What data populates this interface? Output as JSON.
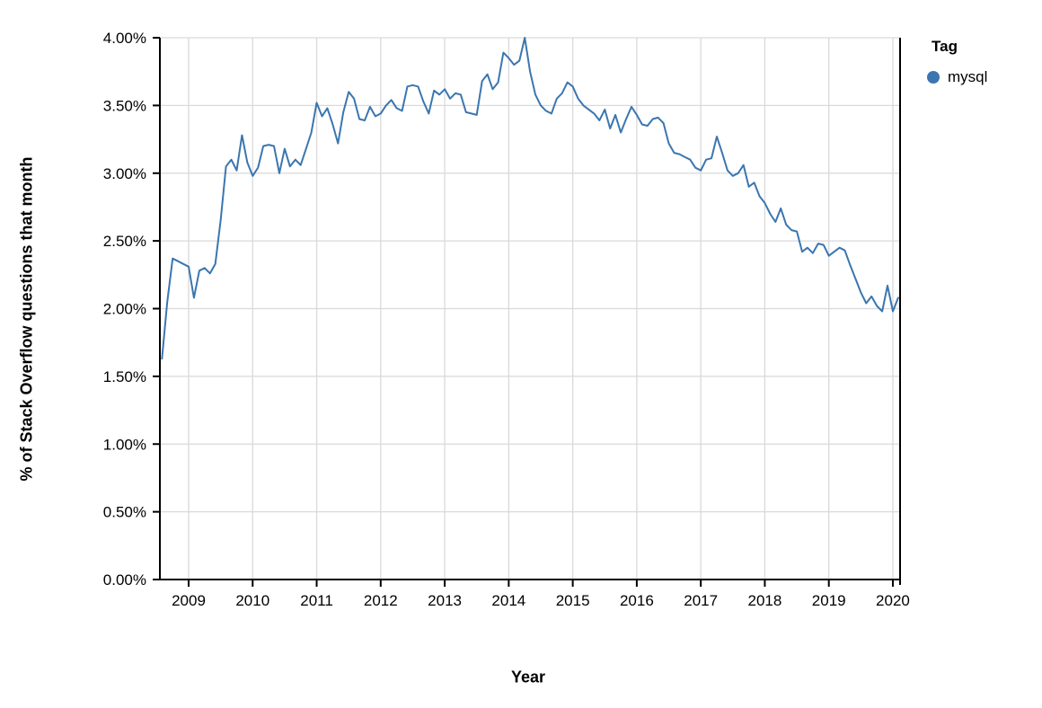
{
  "chart_data": {
    "type": "line",
    "title": "",
    "xlabel": "Year",
    "ylabel": "% of Stack Overflow questions that month",
    "ylim": [
      0,
      4
    ],
    "y_tick_values": [
      0,
      0.5,
      1.0,
      1.5,
      2.0,
      2.5,
      3.0,
      3.5,
      4.0
    ],
    "y_tick_labels": [
      "0.00%",
      "0.50%",
      "1.00%",
      "1.50%",
      "2.00%",
      "2.50%",
      "3.00%",
      "3.50%",
      "4.00%"
    ],
    "x_ticks": [
      2009,
      2010,
      2011,
      2012,
      2013,
      2014,
      2015,
      2016,
      2017,
      2018,
      2019,
      2020
    ],
    "grid": true,
    "legend": {
      "title": "Tag",
      "position": "top-right"
    },
    "colors": {
      "line": "#3b76af",
      "grid": "#d9d9d9",
      "axis": "#000000"
    },
    "x_months": [
      "2008-08",
      "2008-09",
      "2008-10",
      "2008-11",
      "2008-12",
      "2009-01",
      "2009-02",
      "2009-03",
      "2009-04",
      "2009-05",
      "2009-06",
      "2009-07",
      "2009-08",
      "2009-09",
      "2009-10",
      "2009-11",
      "2009-12",
      "2010-01",
      "2010-02",
      "2010-03",
      "2010-04",
      "2010-05",
      "2010-06",
      "2010-07",
      "2010-08",
      "2010-09",
      "2010-10",
      "2010-11",
      "2010-12",
      "2011-01",
      "2011-02",
      "2011-03",
      "2011-04",
      "2011-05",
      "2011-06",
      "2011-07",
      "2011-08",
      "2011-09",
      "2011-10",
      "2011-11",
      "2011-12",
      "2012-01",
      "2012-02",
      "2012-03",
      "2012-04",
      "2012-05",
      "2012-06",
      "2012-07",
      "2012-08",
      "2012-09",
      "2012-10",
      "2012-11",
      "2012-12",
      "2013-01",
      "2013-02",
      "2013-03",
      "2013-04",
      "2013-05",
      "2013-06",
      "2013-07",
      "2013-08",
      "2013-09",
      "2013-10",
      "2013-11",
      "2013-12",
      "2014-01",
      "2014-02",
      "2014-03",
      "2014-04",
      "2014-05",
      "2014-06",
      "2014-07",
      "2014-08",
      "2014-09",
      "2014-10",
      "2014-11",
      "2014-12",
      "2015-01",
      "2015-02",
      "2015-03",
      "2015-04",
      "2015-05",
      "2015-06",
      "2015-07",
      "2015-08",
      "2015-09",
      "2015-10",
      "2015-11",
      "2015-12",
      "2016-01",
      "2016-02",
      "2016-03",
      "2016-04",
      "2016-05",
      "2016-06",
      "2016-07",
      "2016-08",
      "2016-09",
      "2016-10",
      "2016-11",
      "2016-12",
      "2017-01",
      "2017-02",
      "2017-03",
      "2017-04",
      "2017-05",
      "2017-06",
      "2017-07",
      "2017-08",
      "2017-09",
      "2017-10",
      "2017-11",
      "2017-12",
      "2018-01",
      "2018-02",
      "2018-03",
      "2018-04",
      "2018-05",
      "2018-06",
      "2018-07",
      "2018-08",
      "2018-09",
      "2018-10",
      "2018-11",
      "2018-12",
      "2019-01",
      "2019-02",
      "2019-03",
      "2019-04",
      "2019-05",
      "2019-06",
      "2019-07",
      "2019-08",
      "2019-09",
      "2019-10",
      "2019-11",
      "2019-12",
      "2020-01",
      "2020-02"
    ],
    "series": [
      {
        "name": "mysql",
        "color": "#3b76af",
        "unit": "%",
        "values": [
          1.63,
          2.05,
          2.37,
          2.35,
          2.33,
          2.31,
          2.08,
          2.28,
          2.3,
          2.26,
          2.33,
          2.65,
          3.05,
          3.1,
          3.02,
          3.28,
          3.08,
          2.98,
          3.04,
          3.2,
          3.21,
          3.2,
          3.0,
          3.18,
          3.05,
          3.1,
          3.06,
          3.18,
          3.3,
          3.52,
          3.42,
          3.48,
          3.36,
          3.22,
          3.45,
          3.6,
          3.55,
          3.4,
          3.39,
          3.49,
          3.42,
          3.44,
          3.5,
          3.54,
          3.48,
          3.46,
          3.64,
          3.65,
          3.64,
          3.53,
          3.44,
          3.61,
          3.58,
          3.62,
          3.55,
          3.59,
          3.58,
          3.45,
          3.44,
          3.43,
          3.68,
          3.73,
          3.62,
          3.67,
          3.89,
          3.85,
          3.8,
          3.83,
          4.0,
          3.75,
          3.58,
          3.5,
          3.46,
          3.44,
          3.55,
          3.59,
          3.67,
          3.64,
          3.55,
          3.5,
          3.47,
          3.44,
          3.39,
          3.47,
          3.33,
          3.43,
          3.3,
          3.4,
          3.49,
          3.43,
          3.36,
          3.35,
          3.4,
          3.41,
          3.37,
          3.22,
          3.15,
          3.14,
          3.12,
          3.1,
          3.04,
          3.02,
          3.1,
          3.11,
          3.27,
          3.15,
          3.02,
          2.98,
          3.0,
          3.06,
          2.9,
          2.93,
          2.83,
          2.78,
          2.7,
          2.64,
          2.74,
          2.62,
          2.58,
          2.57,
          2.42,
          2.45,
          2.41,
          2.48,
          2.47,
          2.39,
          2.42,
          2.45,
          2.43,
          2.32,
          2.22,
          2.12,
          2.04,
          2.09,
          2.02,
          1.98,
          2.17,
          1.98,
          2.08
        ]
      }
    ]
  }
}
